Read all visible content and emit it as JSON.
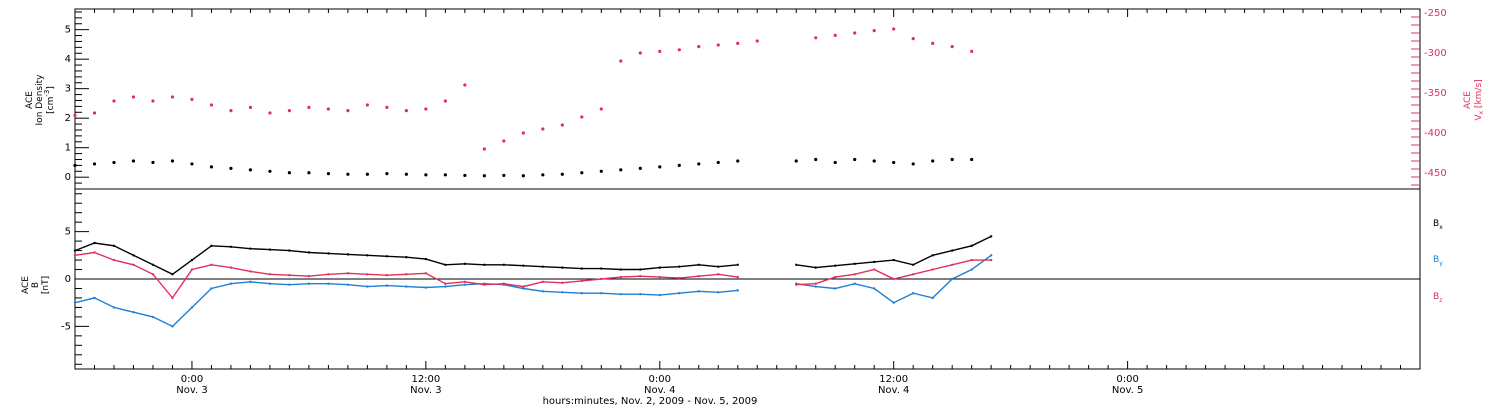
{
  "colors": {
    "ion_density": "#000000",
    "vx": "#e0305a",
    "bx": "#000000",
    "by": "#1e7fd6",
    "bz": "#e0305a"
  },
  "x_axis": {
    "caption": "hours:minutes, Nov.  2, 2009 - Nov.  5, 2009",
    "range_hours": [
      -6,
      63
    ],
    "major_ticks": [
      {
        "hour": 0,
        "time": "0:00",
        "date": "Nov. 3"
      },
      {
        "hour": 12,
        "time": "12:00",
        "date": "Nov. 3"
      },
      {
        "hour": 24,
        "time": "0:00",
        "date": "Nov. 4"
      },
      {
        "hour": 36,
        "time": "12:00",
        "date": "Nov. 4"
      },
      {
        "hour": 48,
        "time": "0:00",
        "date": "Nov. 5"
      }
    ],
    "minor_step_hours": 1
  },
  "top_panel": {
    "left_label": {
      "line1": "ACE",
      "line2": "Ion Density",
      "unit_base": "[cm",
      "unit_sup": "-3",
      "unit_end": "]"
    },
    "right_label": {
      "line1": "ACE",
      "var": "V",
      "sub": "x",
      "unit": "[km/s]"
    },
    "left_ticks": [
      "0",
      "1",
      "2",
      "3",
      "4",
      "5"
    ],
    "right_ticks": [
      "-450",
      "-400",
      "-350",
      "-300",
      "-250"
    ]
  },
  "bottom_panel": {
    "left_label": {
      "line1": "ACE",
      "var": "B",
      "unit": "[nT]"
    },
    "ticks": [
      "-5",
      "0",
      "5"
    ],
    "legend": [
      {
        "var": "B",
        "sub": "x"
      },
      {
        "var": "B",
        "sub": "y"
      },
      {
        "var": "B",
        "sub": "z"
      }
    ]
  },
  "chart_data": [
    {
      "type": "scatter",
      "panel": "top",
      "x_unit": "hours since 2009-11-03 00:00 UT",
      "ylim_left": [
        -0.4,
        5.7
      ],
      "ylim_right": [
        -470,
        -245
      ],
      "series": [
        {
          "name": "Ion Density",
          "axis": "left",
          "x": [
            -6,
            -5,
            -4,
            -3,
            -2,
            -1,
            0,
            1,
            2,
            3,
            4,
            5,
            6,
            7,
            8,
            9,
            10,
            11,
            12,
            13,
            14,
            15,
            16,
            17,
            18,
            19,
            20,
            21,
            22,
            23,
            24,
            25,
            26,
            27,
            28,
            29,
            30,
            31,
            32,
            33,
            34,
            35,
            36,
            37,
            38,
            39,
            40
          ],
          "y": [
            0.4,
            0.45,
            0.5,
            0.55,
            0.5,
            0.55,
            0.45,
            0.35,
            0.3,
            0.25,
            0.2,
            0.15,
            0.15,
            0.12,
            0.1,
            0.1,
            0.12,
            0.1,
            0.08,
            0.08,
            0.06,
            0.05,
            0.06,
            0.05,
            0.08,
            0.1,
            0.15,
            0.2,
            0.25,
            0.3,
            0.35,
            0.4,
            0.45,
            0.5,
            0.55,
            null,
            null,
            0.55,
            0.6,
            0.5,
            0.6,
            0.55,
            0.5,
            0.45,
            0.55,
            0.6,
            0.6
          ]
        },
        {
          "name": "Vx",
          "axis": "right",
          "x": [
            -6,
            -5,
            -4,
            -3,
            -2,
            -1,
            0,
            1,
            2,
            3,
            4,
            5,
            6,
            7,
            8,
            9,
            10,
            11,
            12,
            13,
            14,
            15,
            16,
            17,
            18,
            19,
            20,
            21,
            22,
            23,
            24,
            25,
            26,
            27,
            28,
            29,
            30,
            31,
            32,
            33,
            34,
            35,
            36,
            37,
            38,
            39,
            40
          ],
          "y": [
            -378,
            -375,
            -360,
            -355,
            -360,
            -355,
            -358,
            -365,
            -372,
            -368,
            -375,
            -372,
            -368,
            -370,
            -372,
            -365,
            -368,
            -372,
            -370,
            -360,
            -340,
            -420,
            -410,
            -400,
            -395,
            -390,
            -380,
            -370,
            -310,
            -300,
            -298,
            -296,
            -292,
            -290,
            -288,
            -285,
            null,
            null,
            -281,
            -278,
            -275,
            -272,
            -270,
            -282,
            -288,
            -292,
            -298
          ]
        }
      ]
    },
    {
      "type": "line",
      "panel": "bottom",
      "x_unit": "hours since 2009-11-03 00:00 UT",
      "ylim": [
        -9.5,
        9.5
      ],
      "series": [
        {
          "name": "Bx",
          "x": [
            -6,
            -5,
            -4,
            -3,
            -2,
            -1,
            0,
            1,
            2,
            3,
            4,
            5,
            6,
            7,
            8,
            9,
            10,
            11,
            12,
            13,
            14,
            15,
            16,
            17,
            18,
            19,
            20,
            21,
            22,
            23,
            24,
            25,
            26,
            27,
            28,
            29,
            30,
            31,
            32,
            33,
            34,
            35,
            36,
            37,
            38,
            39,
            40,
            41
          ],
          "y": [
            3,
            3.8,
            3.5,
            2.5,
            1.5,
            0.5,
            2,
            3.5,
            3.4,
            3.2,
            3.1,
            3,
            2.8,
            2.7,
            2.6,
            2.5,
            2.4,
            2.3,
            2.1,
            1.5,
            1.6,
            1.5,
            1.5,
            1.4,
            1.3,
            1.2,
            1.1,
            1.1,
            1,
            1,
            1.2,
            1.3,
            1.5,
            1.3,
            1.5,
            null,
            null,
            1.5,
            1.2,
            1.4,
            1.6,
            1.8,
            2,
            1.5,
            2.5,
            3,
            3.5,
            4.5
          ]
        },
        {
          "name": "By",
          "x": [
            -6,
            -5,
            -4,
            -3,
            -2,
            -1,
            0,
            1,
            2,
            3,
            4,
            5,
            6,
            7,
            8,
            9,
            10,
            11,
            12,
            13,
            14,
            15,
            16,
            17,
            18,
            19,
            20,
            21,
            22,
            23,
            24,
            25,
            26,
            27,
            28,
            29,
            30,
            31,
            32,
            33,
            34,
            35,
            36,
            37,
            38,
            39,
            40,
            41
          ],
          "y": [
            -2.5,
            -2,
            -3,
            -3.5,
            -4,
            -5,
            -3,
            -1,
            -0.5,
            -0.3,
            -0.5,
            -0.6,
            -0.5,
            -0.5,
            -0.6,
            -0.8,
            -0.7,
            -0.8,
            -0.9,
            -0.8,
            -0.6,
            -0.5,
            -0.6,
            -1,
            -1.3,
            -1.4,
            -1.5,
            -1.5,
            -1.6,
            -1.6,
            -1.7,
            -1.5,
            -1.3,
            -1.4,
            -1.2,
            null,
            null,
            -0.5,
            -0.8,
            -1,
            -0.5,
            -1,
            -2.5,
            -1.5,
            -2,
            0,
            1,
            2.5
          ]
        },
        {
          "name": "Bz",
          "x": [
            -6,
            -5,
            -4,
            -3,
            -2,
            -1,
            0,
            1,
            2,
            3,
            4,
            5,
            6,
            7,
            8,
            9,
            10,
            11,
            12,
            13,
            14,
            15,
            16,
            17,
            18,
            19,
            20,
            21,
            22,
            23,
            24,
            25,
            26,
            27,
            28,
            29,
            30,
            31,
            32,
            33,
            34,
            35,
            36,
            37,
            38,
            39,
            40,
            41
          ],
          "y": [
            2.5,
            2.8,
            2,
            1.5,
            0.5,
            -2,
            1,
            1.5,
            1.2,
            0.8,
            0.5,
            0.4,
            0.3,
            0.5,
            0.6,
            0.5,
            0.4,
            0.5,
            0.6,
            -0.5,
            -0.3,
            -0.6,
            -0.5,
            -0.8,
            -0.3,
            -0.4,
            -0.2,
            0,
            0.2,
            0.3,
            0.2,
            0.1,
            0.3,
            0.5,
            0.2,
            null,
            null,
            -0.6,
            -0.5,
            0.2,
            0.5,
            1,
            0,
            0.5,
            1,
            1.5,
            2,
            2
          ]
        }
      ]
    }
  ]
}
